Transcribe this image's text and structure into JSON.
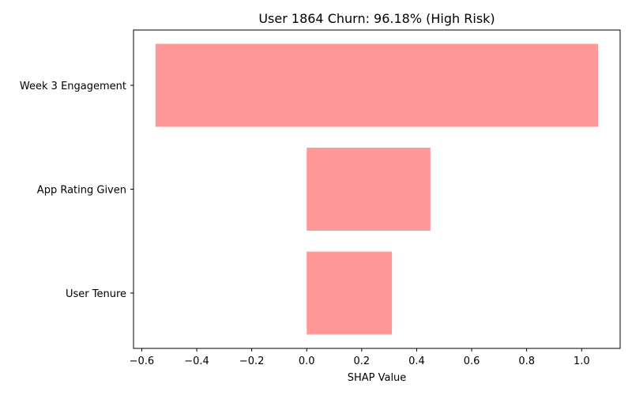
{
  "chart_data": {
    "type": "bar",
    "orientation": "horizontal",
    "title": "User 1864 Churn: 96.18% (High Risk)",
    "xlabel": "SHAP Value",
    "ylabel": "",
    "xlim": [
      -0.63,
      1.14
    ],
    "x_ticks": [
      -0.6,
      -0.4,
      -0.2,
      0.0,
      0.2,
      0.4,
      0.6,
      0.8,
      1.0
    ],
    "x_tick_labels": [
      "−0.6",
      "−0.4",
      "−0.2",
      "0.0",
      "0.2",
      "0.4",
      "0.6",
      "0.8",
      "1.0"
    ],
    "grid": false,
    "bars": [
      {
        "category": "Week 3 Engagement",
        "start": -0.55,
        "end": 1.06
      },
      {
        "category": "App Rating Given",
        "start": 0.0,
        "end": 0.45
      },
      {
        "category": "User Tenure",
        "start": 0.0,
        "end": 0.31
      }
    ],
    "bar_color": "#ff9999"
  }
}
